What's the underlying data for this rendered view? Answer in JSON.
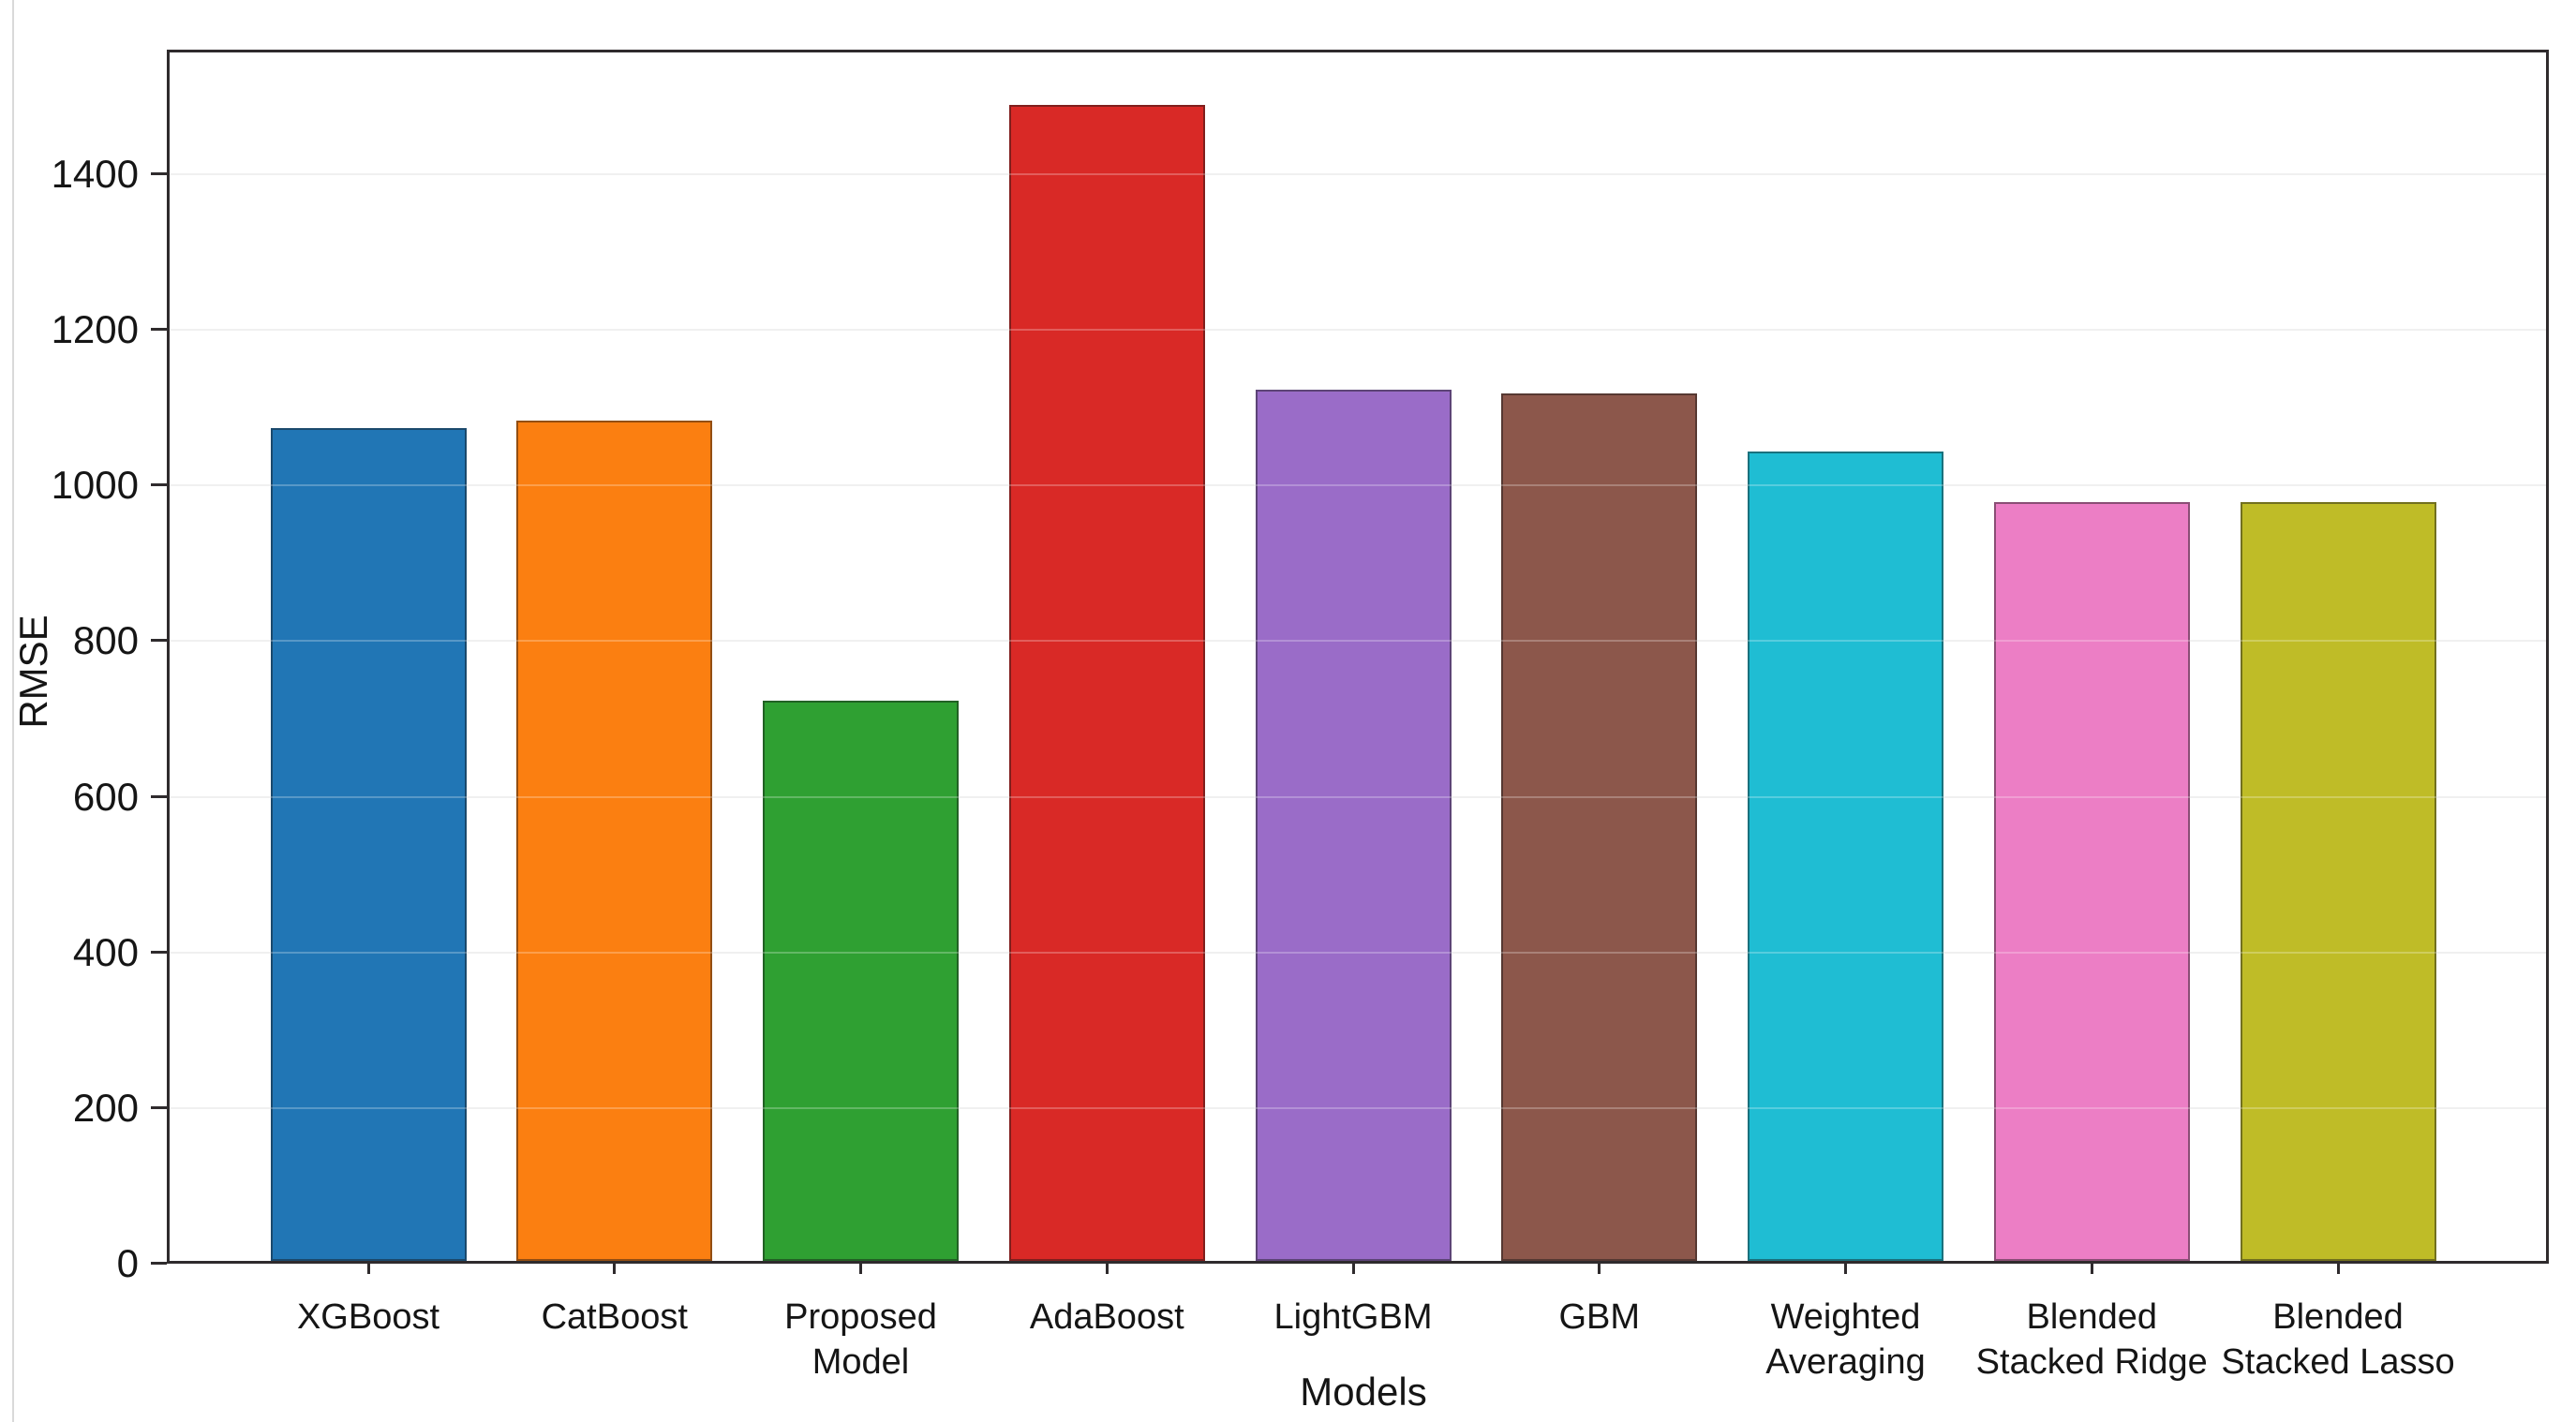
{
  "figure": {
    "background": "#ffffff",
    "spine_color": "#2f2b2d",
    "grid_color": "#ebebeb",
    "text_color": "#151515"
  },
  "chart_data": {
    "type": "bar",
    "title": "",
    "xlabel": "Models",
    "ylabel": "RMSE",
    "categories": [
      "XGBoost",
      "CatBoost",
      "Proposed Model",
      "AdaBoost",
      "LightGBM",
      "GBM",
      "Weighted Averaging",
      "Blended Stacked Ridge",
      "Blended Stacked Lasso"
    ],
    "category_lines": [
      [
        "XGBoost"
      ],
      [
        "CatBoost"
      ],
      [
        "Proposed",
        "Model"
      ],
      [
        "AdaBoost"
      ],
      [
        "LightGBM"
      ],
      [
        "GBM"
      ],
      [
        "Weighted",
        "Averaging"
      ],
      [
        "Blended",
        "Stacked Ridge"
      ],
      [
        "Blended",
        "Stacked Lasso"
      ]
    ],
    "values": [
      1070,
      1080,
      720,
      1485,
      1120,
      1115,
      1040,
      975,
      975
    ],
    "bar_colors": [
      "#2176b5",
      "#fb7f11",
      "#2fa032",
      "#d92926",
      "#9a6cc8",
      "#8c574b",
      "#1fbdd3",
      "#ec7ec5",
      "#bfbc27"
    ],
    "ylim": [
      0,
      1560
    ],
    "yticks": [
      0,
      200,
      400,
      600,
      800,
      1000,
      1200,
      1400
    ],
    "grid": "horizontal",
    "legend": "none"
  }
}
